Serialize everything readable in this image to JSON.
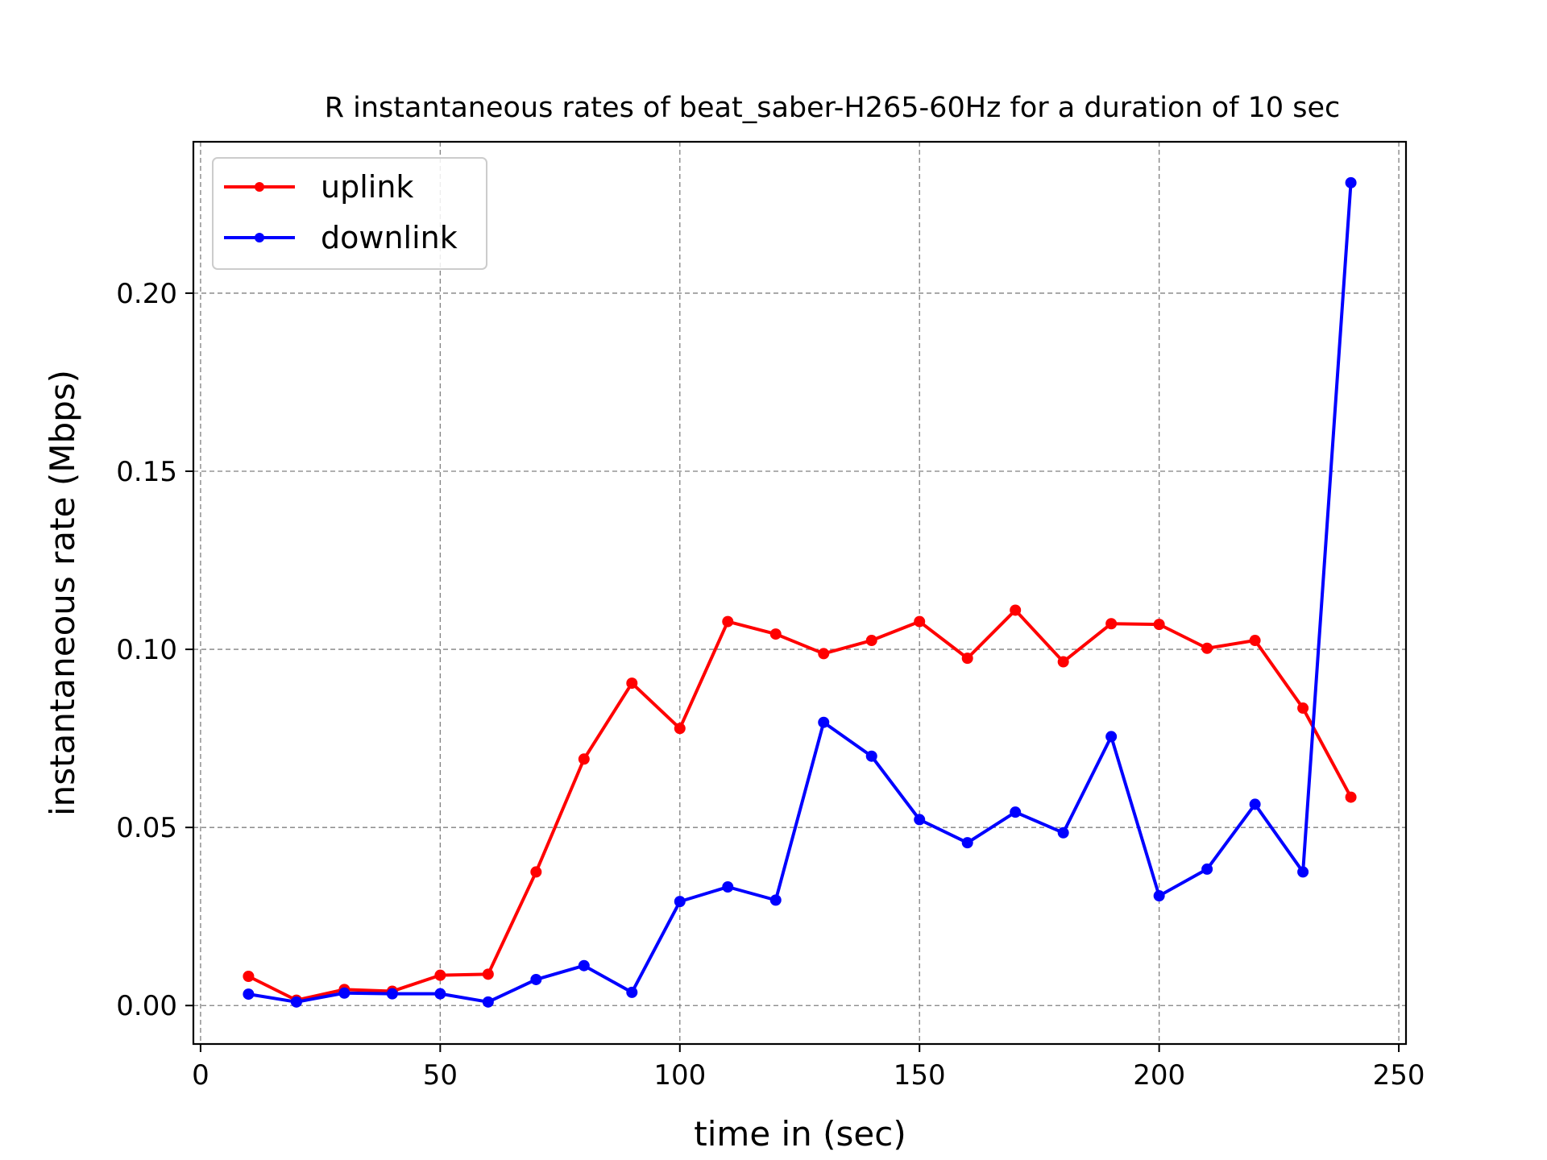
{
  "chart_data": {
    "type": "line",
    "title": "R instantaneous rates of beat_saber-H265-60Hz for a duration of 10 sec",
    "xlabel": "time in (sec)",
    "ylabel": "instantaneous rate (Mbps)",
    "xlim": [
      -1.5,
      251.5
    ],
    "ylim": [
      -0.0108,
      0.2425
    ],
    "xticks": [
      0,
      50,
      100,
      150,
      200,
      250
    ],
    "xtick_labels": [
      "0",
      "50",
      "100",
      "150",
      "200",
      "250"
    ],
    "yticks": [
      0.0,
      0.05,
      0.1,
      0.15,
      0.2
    ],
    "ytick_labels": [
      "0.00",
      "0.05",
      "0.10",
      "0.15",
      "0.20"
    ],
    "grid": true,
    "legend_position": "top-left",
    "x": [
      10,
      20,
      30,
      40,
      50,
      60,
      70,
      80,
      90,
      100,
      110,
      120,
      130,
      140,
      150,
      160,
      170,
      180,
      190,
      200,
      210,
      220,
      230,
      240
    ],
    "series": [
      {
        "name": "uplink",
        "color": "#ff0000",
        "values": [
          0.0082,
          0.0015,
          0.0045,
          0.004,
          0.0085,
          0.0088,
          0.0375,
          0.0692,
          0.0905,
          0.0778,
          0.1078,
          0.1043,
          0.0988,
          0.1025,
          0.1078,
          0.0975,
          0.111,
          0.0965,
          0.1072,
          0.107,
          0.1003,
          0.1025,
          0.0835,
          0.0585
        ]
      },
      {
        "name": "downlink",
        "color": "#0000ff",
        "values": [
          0.0032,
          0.001,
          0.0035,
          0.0033,
          0.0033,
          0.001,
          0.0073,
          0.0112,
          0.0037,
          0.0292,
          0.0333,
          0.0296,
          0.0795,
          0.07,
          0.0522,
          0.0457,
          0.0543,
          0.0485,
          0.0755,
          0.0308,
          0.0383,
          0.0565,
          0.0375,
          0.231
        ]
      }
    ]
  }
}
